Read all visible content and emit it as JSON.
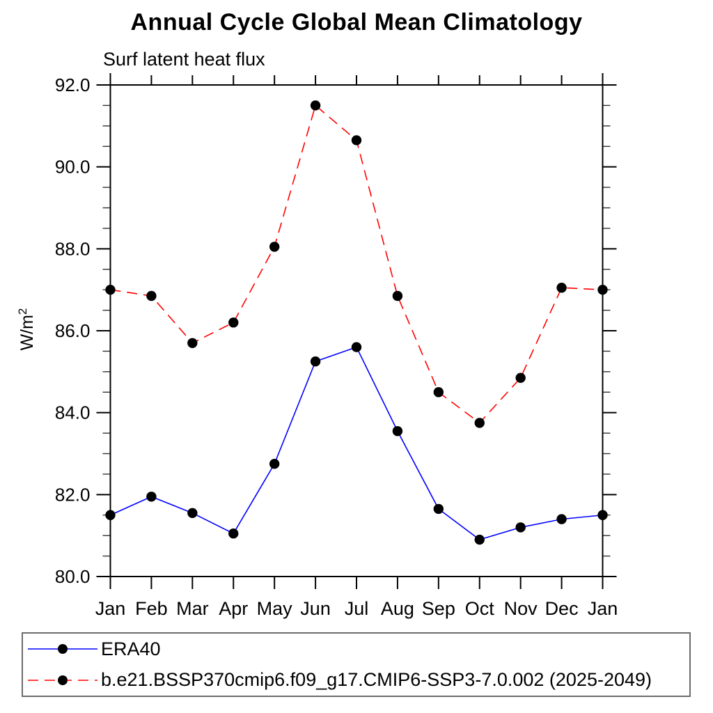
{
  "chart_data": {
    "type": "line",
    "title": "Annual Cycle Global Mean Climatology",
    "subtitle": "Surf latent heat flux",
    "ylabel": {
      "base": "W/m",
      "superscript": "2"
    },
    "xlabel": "",
    "categories": [
      "Jan",
      "Feb",
      "Mar",
      "Apr",
      "May",
      "Jun",
      "Jul",
      "Aug",
      "Sep",
      "Oct",
      "Nov",
      "Dec",
      "Jan"
    ],
    "ylim": [
      80.0,
      92.0
    ],
    "ytick_major_step": 2.0,
    "ytick_minor_step": 0.5,
    "ytick_labels": [
      "80.0",
      "82.0",
      "84.0",
      "86.0",
      "88.0",
      "90.0",
      "92.0"
    ],
    "grid": false,
    "legend_position": "bottom-left-box",
    "axis_color": "#000000",
    "marker_shape": "filled-circle",
    "series": [
      {
        "name": "ERA40",
        "color": "#0000ff",
        "line_style": "solid",
        "marker_color": "#000000",
        "values": [
          81.5,
          81.95,
          81.55,
          81.05,
          82.75,
          85.25,
          85.6,
          83.55,
          81.65,
          80.9,
          81.2,
          81.4,
          81.5
        ]
      },
      {
        "name": "b.e21.BSSP370cmip6.f09_g17.CMIP6-SSP3-7.0.002 (2025-2049)",
        "color": "#ff0000",
        "line_style": "dashed",
        "marker_color": "#000000",
        "values": [
          87.0,
          86.85,
          85.7,
          86.2,
          88.05,
          91.5,
          90.65,
          86.85,
          84.5,
          83.75,
          84.85,
          87.05,
          87.0
        ]
      }
    ]
  }
}
